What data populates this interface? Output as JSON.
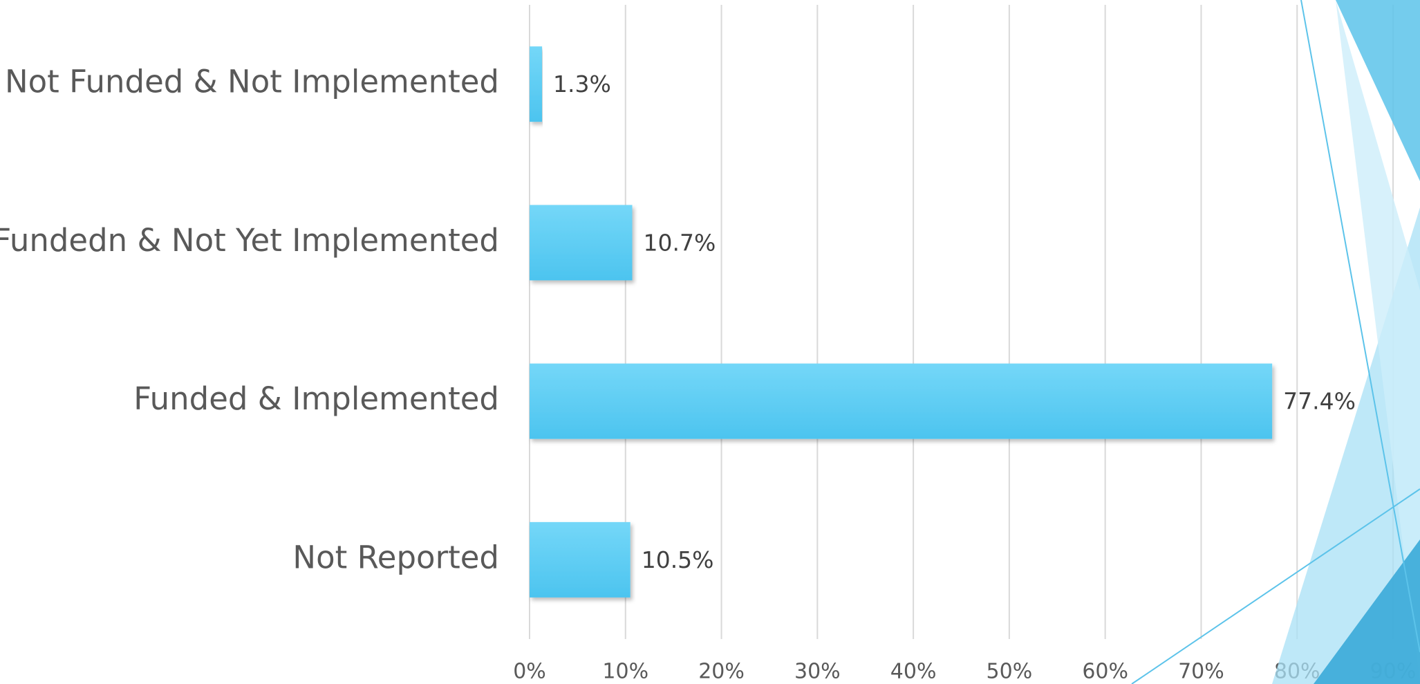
{
  "chart_data": {
    "type": "bar",
    "orientation": "horizontal",
    "categories": [
      "Not Funded & Not Implemented",
      "Fundedn & Not Yet Implemented",
      "Funded & Implemented",
      "Not Reported"
    ],
    "values": [
      1.3,
      10.7,
      77.4,
      10.5
    ],
    "value_labels": [
      "1.3%",
      "10.7%",
      "77.4%",
      "10.5%"
    ],
    "color": "#56c8f1",
    "xlim": [
      0,
      90
    ],
    "xticks": [
      {
        "value": 0,
        "label": "0%"
      },
      {
        "value": 10,
        "label": "10%"
      },
      {
        "value": 20,
        "label": "20%"
      },
      {
        "value": 30,
        "label": "30%"
      },
      {
        "value": 40,
        "label": "40%"
      },
      {
        "value": 50,
        "label": "50%"
      },
      {
        "value": 60,
        "label": "60%"
      },
      {
        "value": 70,
        "label": "70%"
      },
      {
        "value": 80,
        "label": "80%"
      },
      {
        "value": 90,
        "label": "90%"
      }
    ],
    "grid": true
  }
}
